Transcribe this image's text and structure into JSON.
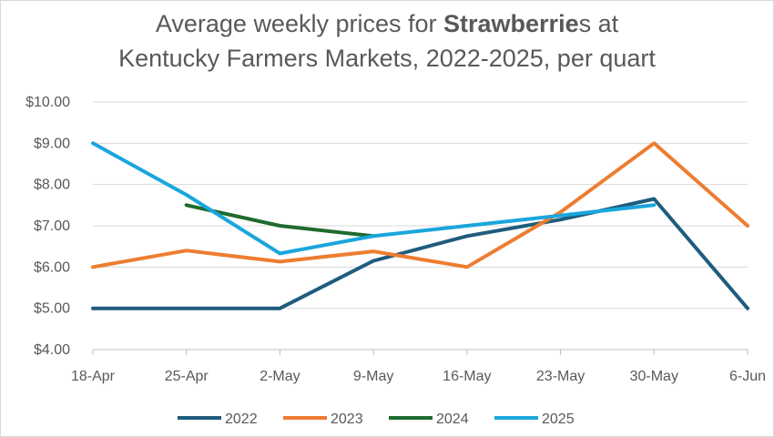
{
  "chart_data": {
    "type": "line",
    "title": {
      "line1_pre": "Average weekly prices for ",
      "line1_bold": "Strawberrie",
      "line1_post": "s at",
      "line2": "Kentucky Farmers Markets, 2022-2025, per quart"
    },
    "categories": [
      "18-Apr",
      "25-Apr",
      "2-May",
      "9-May",
      "16-May",
      "23-May",
      "30-May",
      "6-Jun"
    ],
    "yticks": [
      "$4.00",
      "$5.00",
      "$6.00",
      "$7.00",
      "$8.00",
      "$9.00",
      "$10.00"
    ],
    "ylim": [
      4,
      10
    ],
    "grid": true,
    "legend_position": "bottom",
    "series": [
      {
        "name": "2022",
        "color": "#1f5c7d",
        "values": [
          5.0,
          5.0,
          5.0,
          6.15,
          6.75,
          7.15,
          7.65,
          5.0
        ]
      },
      {
        "name": "2023",
        "color": "#ed7d31",
        "values": [
          6.0,
          6.4,
          6.13,
          6.38,
          6.0,
          7.33,
          9.0,
          7.0
        ]
      },
      {
        "name": "2024",
        "color": "#1e6b2e",
        "values": [
          null,
          7.5,
          7.0,
          6.75,
          null,
          null,
          null,
          null
        ]
      },
      {
        "name": "2025",
        "color": "#1aa6dd",
        "values": [
          9.0,
          7.75,
          6.33,
          6.75,
          7.0,
          7.25,
          7.5,
          null
        ]
      }
    ]
  }
}
